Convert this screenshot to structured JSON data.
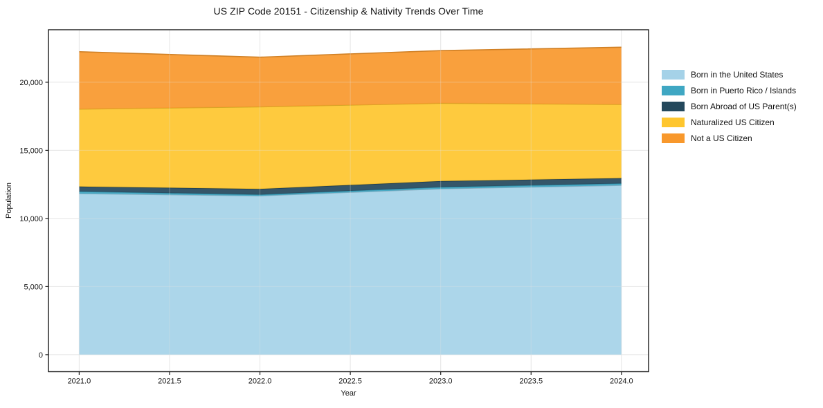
{
  "title": "US ZIP Code 20151 - Citizenship & Nativity Trends Over Time",
  "chart_data": {
    "type": "area",
    "stacked": true,
    "title": "US ZIP Code 20151 - Citizenship & Nativity Trends Over Time",
    "xlabel": "Year",
    "ylabel": "Population",
    "x": [
      2021,
      2022,
      2023,
      2024
    ],
    "series": [
      {
        "name": "Born in the United States",
        "color": "#a5d2e8",
        "values": [
          11830,
          11660,
          12180,
          12430
        ]
      },
      {
        "name": "Born in Puerto Rico / Islands",
        "color": "#3fa7c3",
        "values": [
          150,
          90,
          120,
          140
        ]
      },
      {
        "name": "Born Abroad of US Parent(s)",
        "color": "#24485c",
        "values": [
          360,
          420,
          440,
          390
        ]
      },
      {
        "name": "Naturalized US Citizen",
        "color": "#fec62e",
        "values": [
          5690,
          6030,
          5720,
          5410
        ]
      },
      {
        "name": "Not a US Citizen",
        "color": "#f8982c",
        "values": [
          4210,
          3640,
          3860,
          4200
        ]
      }
    ],
    "totals": [
      22240,
      21840,
      22320,
      22570
    ],
    "x_ticks": [
      2021.0,
      2021.5,
      2022.0,
      2022.5,
      2023.0,
      2023.5,
      2024.0
    ],
    "x_tick_labels": [
      "2021.0",
      "2021.5",
      "2022.0",
      "2022.5",
      "2023.0",
      "2023.5",
      "2024.0"
    ],
    "y_ticks": [
      0,
      5000,
      10000,
      15000,
      20000
    ],
    "y_tick_labels": [
      "0",
      "5,000",
      "10,000",
      "15,000",
      "20,000"
    ],
    "xlim": [
      2020.83,
      2024.15
    ],
    "ylim": [
      -1250,
      23855
    ],
    "grid": true,
    "grid_color": "#e6e6e6",
    "spine_color": "#1a1a1a",
    "legend_position": "outside-right"
  }
}
